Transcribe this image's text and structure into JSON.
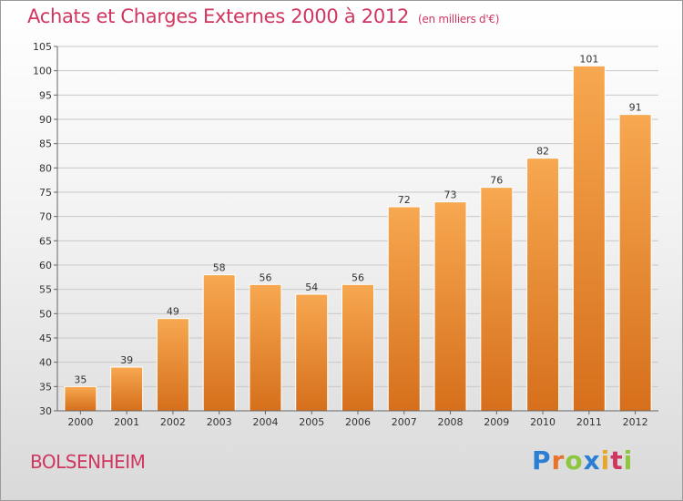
{
  "header": {
    "title": "Achats et Charges Externes 2000 à 2012",
    "subtitle": "(en milliers d'€)"
  },
  "footer": {
    "city": "BOLSENHEIM",
    "logo_letters": [
      {
        "ch": "P",
        "color": "#2a7fd4"
      },
      {
        "ch": "r",
        "color": "#e8732a"
      },
      {
        "ch": "o",
        "color": "#8dc63f"
      },
      {
        "ch": "x",
        "color": "#2a7fd4"
      },
      {
        "ch": "i",
        "color": "#e8a62a"
      },
      {
        "ch": "t",
        "color": "#d0365f"
      },
      {
        "ch": "i",
        "color": "#8dc63f"
      }
    ]
  },
  "chart_data": {
    "type": "bar",
    "title": "Achats et Charges Externes 2000 à 2012",
    "subtitle": "(en milliers d'€)",
    "categories": [
      "2000",
      "2001",
      "2002",
      "2003",
      "2004",
      "2005",
      "2006",
      "2007",
      "2008",
      "2009",
      "2010",
      "2011",
      "2012"
    ],
    "values": [
      35,
      39,
      49,
      58,
      56,
      54,
      56,
      72,
      73,
      76,
      82,
      101,
      91
    ],
    "ylim": [
      30,
      105
    ],
    "yticks": [
      30,
      35,
      40,
      45,
      50,
      55,
      60,
      65,
      70,
      75,
      80,
      85,
      90,
      95,
      100,
      105
    ],
    "grid": true,
    "bar_color": "#f5a04a",
    "bar_color_dark": "#d9731c",
    "grid_color": "#c8c8c8"
  }
}
